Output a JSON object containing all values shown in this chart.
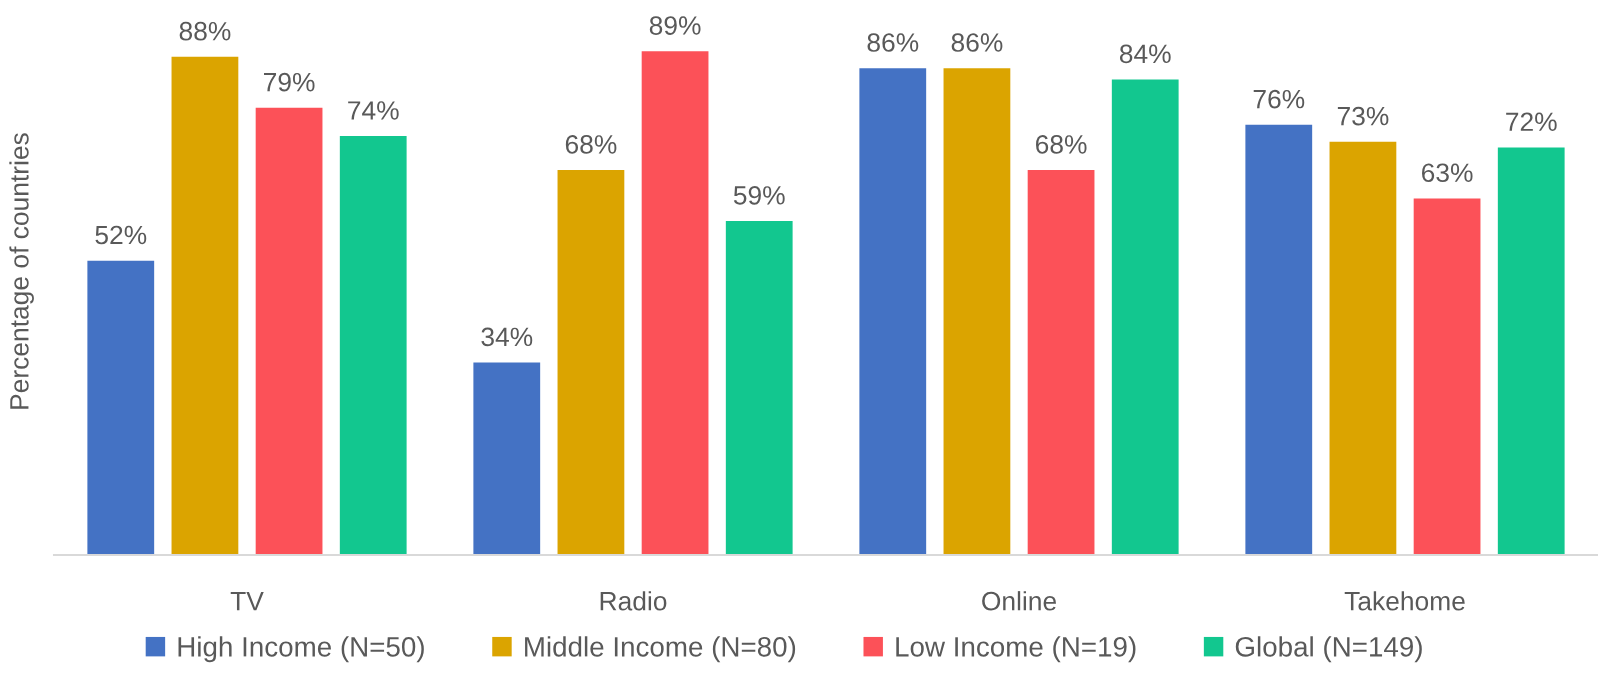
{
  "chart_data": {
    "type": "bar",
    "ylabel": "Percentage of countries",
    "categories": [
      "TV",
      "Radio",
      "Online",
      "Takehome"
    ],
    "series": [
      {
        "name": "High Income (N=50)",
        "color": "#4472c4",
        "values": [
          52,
          34,
          86,
          76
        ],
        "value_labels": [
          "52%",
          "34%",
          "86%",
          "76%"
        ]
      },
      {
        "name": "Middle Income (N=80)",
        "color": "#dba400",
        "values": [
          88,
          68,
          86,
          73
        ],
        "value_labels": [
          "88%",
          "68%",
          "86%",
          "73%"
        ]
      },
      {
        "name": "Low Income (N=19)",
        "color": "#fc5158",
        "values": [
          79,
          89,
          68,
          63
        ],
        "value_labels": [
          "79%",
          "89%",
          "68%",
          "63%"
        ]
      },
      {
        "name": "Global (N=149)",
        "color": "#12c78f",
        "values": [
          74,
          59,
          84,
          72
        ],
        "value_labels": [
          "74%",
          "59%",
          "84%",
          "72%"
        ]
      }
    ],
    "tick_labels": "x",
    "legend": "bottom"
  }
}
